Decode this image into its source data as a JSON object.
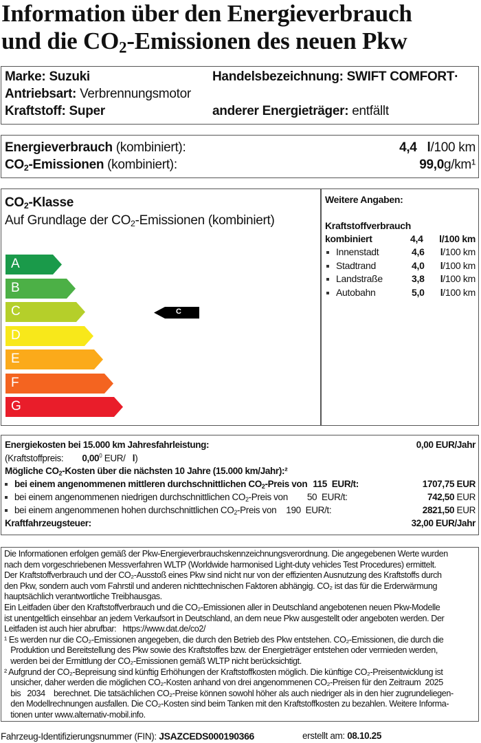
{
  "title": {
    "line1": "Information über den Energieverbrauch",
    "line2_pre": "und die CO",
    "line2_sub": "2",
    "line2_post": "-Emissionen des neuen Pkw"
  },
  "vehicle": {
    "marke_label": "Marke:",
    "marke": "Suzuki",
    "handels_label": "Handelsbezeichnung:",
    "handels": "SWIFT COMFORT·",
    "antrieb_label": "Antriebsart:",
    "antrieb": "Verbrennungsmotor",
    "kraftstoff_label": "Kraftstoff:",
    "kraftstoff": "Super",
    "anderer_label": "anderer Energieträger:",
    "anderer": "entfällt"
  },
  "consumption": {
    "energy_label": "Energieverbrauch",
    "combined": "(kombiniert):",
    "energy_value": "4,4",
    "energy_unit_b": "l",
    "energy_unit": "/100 km",
    "co2_label_pre": "CO",
    "co2_label_post": "-Emissionen",
    "co2_value": "99,0",
    "co2_unit": "g/km¹"
  },
  "co2class": {
    "title_pre": "CO",
    "title_post": "-Klasse",
    "subtitle_pre": "Auf Grundlage der CO",
    "subtitle_post": "-Emissionen (kombiniert)",
    "classes": [
      {
        "letter": "A",
        "color": "#1a9a4a"
      },
      {
        "letter": "B",
        "color": "#4cb046"
      },
      {
        "letter": "C",
        "color": "#b5cf2a"
      },
      {
        "letter": "D",
        "color": "#f8e81a"
      },
      {
        "letter": "E",
        "color": "#fbaa1a"
      },
      {
        "letter": "F",
        "color": "#f46420"
      },
      {
        "letter": "G",
        "color": "#e91d2a"
      }
    ],
    "current": "C"
  },
  "weitere": {
    "title": "Weitere Angaben:",
    "heading": "Kraftstoffverbrauch",
    "combined_label": "kombiniert",
    "combined_value": "4,4",
    "combined_unit": "l/100 km",
    "rows": [
      {
        "label": "Innenstadt",
        "value": "4,6",
        "unit_b": "l",
        "unit": "/100 km"
      },
      {
        "label": "Stadtrand",
        "value": "4,0",
        "unit_b": "l",
        "unit": "/100 km"
      },
      {
        "label": "Landstraße",
        "value": "3,8",
        "unit_b": "l",
        "unit": "/100 km"
      },
      {
        "label": "Autobahn",
        "value": "5,0",
        "unit_b": "l",
        "unit": "/100 km"
      }
    ]
  },
  "costs": {
    "energy_label": "Energiekosten bei 15.000 km Jahresfahrleistung:",
    "energy_value": "0,00 EUR/Jahr",
    "price_label": "(Kraftstoffpreis:",
    "price_value": "0,00",
    "price_sup": "0",
    "price_unit": "EUR/",
    "price_l": "l",
    "price_close": ")",
    "co2_heading_pre": "Mögliche CO",
    "co2_heading_post": "-Kosten über die nächsten 10 Jahre (15.000 km/Jahr):²",
    "mid_pre": "bei einem angenommenen mittleren durchschnittlichen CO",
    "mid_post": "-Preis von",
    "mid_price": "115",
    "mid_unit": "EUR/t:",
    "mid_value": "1707,75 EUR",
    "low_pre": "bei einem angenommenen niedrigen durchschnittlichen CO",
    "low_post": "-Preis von",
    "low_price": "50",
    "low_unit": "EUR/t:",
    "low_value": "742,50",
    "low_cur": "EUR",
    "high_pre": "bei einem angenommenen hohen durchschnittlichen CO",
    "high_post": "-Preis von",
    "high_price": "190",
    "high_unit": "EUR/t:",
    "high_value": "2821,50",
    "high_cur": "EUR",
    "tax_label": "Kraftfahrzeugsteuer:",
    "tax_value": "32,00 EUR/Jahr"
  },
  "fineprint": [
    "Die Informationen erfolgen gemäß der Pkw-Energieverbrauchskennzeichnungsverordnung. Die angegebenen Werte wurden",
    "nach dem vorgeschriebenen Messverfahren WLTP (Worldwide harmonised Light-duty vehicles Test Procedures) ermittelt.",
    "Der Kraftstoffverbrauch und der CO₂-Ausstoß eines Pkw sind nicht nur von der effizienten Ausnutzung des Kraftstoffs durch",
    "den Pkw, sondern auch vom Fahrstil und anderen nichttechnischen Faktoren abhängig. CO₂ ist das für die Erderwärmung",
    "hauptsächlich verantwortliche Treibhausgas.",
    "Ein Leitfaden über den Kraftstoffverbrauch und die CO₂-Emissionen aller in Deutschland angebotenen neuen Pkw-Modelle",
    "ist unentgeltlich einsehbar an jedem Verkaufsort in Deutschland, an dem neue Pkw ausgestellt oder angeboten werden. Der",
    "Leitfaden ist auch hier abrufbar:   https://www.dat.de/co2/",
    "¹ Es werden nur die CO₂-Emissionen angegeben, die durch den Betrieb des Pkw entstehen. CO₂-Emissionen, die durch die",
    "   Produktion und Bereitstellung des Pkw sowie des Kraftstoffes bzw. der Energieträger entstehen oder vermieden werden,",
    "   werden bei der Ermittlung der CO₂-Emissionen gemäß WLTP nicht berücksichtigt.",
    "² Aufgrund der CO₂-Bepreisung sind künftig Erhöhungen der Kraftstoffkosten möglich. Die künftige CO₂-Preisentwicklung ist",
    "   unsicher, daher werden die möglichen CO₂-Kosten anhand von drei angenommenen CO₂-Preisen für den Zeitraum  2025",
    "   bis   2034    berechnet. Die tatsächlichen CO₂-Preise können sowohl höher als auch niedriger als in den hier zugrundeliegen-",
    "   den Modellrechnungen ausfallen. Die CO₂-Kosten sind beim Tanken mit den Kraftstoffkosten zu bezahlen. Weitere Informa-",
    "   tionen unter www.alternativ-mobil.info."
  ],
  "footer": {
    "fin_label": "Fahrzeug-Identifizierungsnummer (FIN):",
    "fin": "JSAZCEDS000190366",
    "date_label": "erstellt am:",
    "date": "08.10.25"
  }
}
